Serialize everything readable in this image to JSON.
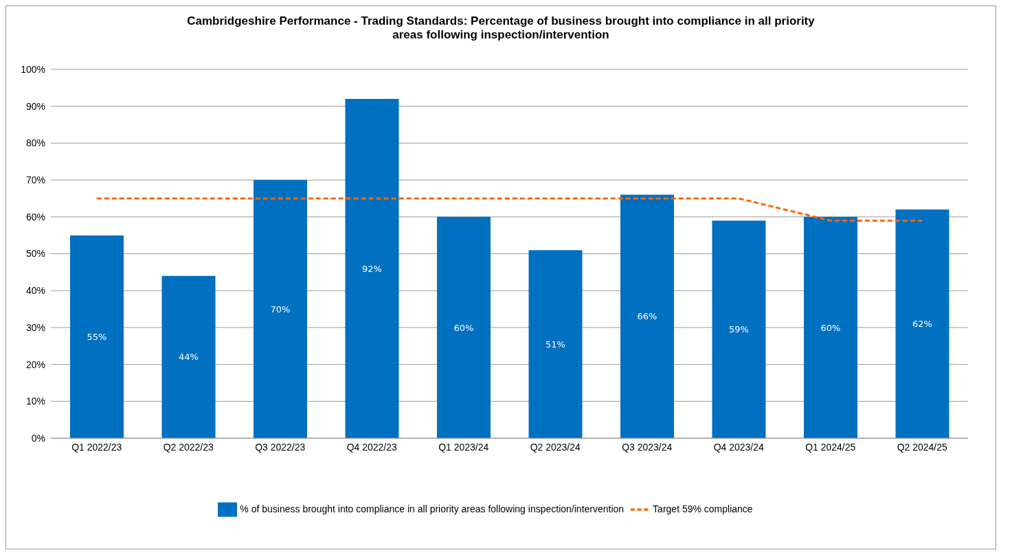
{
  "chart_data": {
    "type": "bar",
    "title": "Cambridgeshire Performance - Trading Standards: Percentage of business brought into compliance in all priority areas following inspection/intervention",
    "categories": [
      "Q1 2022/23",
      "Q2 2022/23",
      "Q3 2022/23",
      "Q4 2022/23",
      "Q1 2023/24",
      "Q2 2023/24",
      "Q3 2023/24",
      "Q4 2023/24",
      "Q1 2024/25",
      "Q2 2024/25"
    ],
    "series": [
      {
        "name": "% of business brought into compliance in all priority areas following inspection/intervention",
        "color": "#0070c0",
        "values": [
          55,
          44,
          70,
          92,
          60,
          51,
          66,
          59,
          60,
          62
        ],
        "value_labels": [
          "55%",
          "44%",
          "70%",
          "92%",
          "60%",
          "51%",
          "66%",
          "59%",
          "60%",
          "62%"
        ]
      },
      {
        "name": "Target 59% compliance",
        "type": "line",
        "color": "#ff6600",
        "line_style": "dashed",
        "marker": "none",
        "values": [
          65,
          65,
          65,
          65,
          65,
          65,
          65,
          65,
          59,
          59
        ]
      }
    ],
    "ylim": [
      0,
      100
    ],
    "yticks": [
      {
        "value": 0,
        "label": "0%"
      },
      {
        "value": 10,
        "label": "10%"
      },
      {
        "value": 20,
        "label": "20%"
      },
      {
        "value": 30,
        "label": "30%"
      },
      {
        "value": 40,
        "label": "40%"
      },
      {
        "value": 50,
        "label": "50%"
      },
      {
        "value": 60,
        "label": "60%"
      },
      {
        "value": 70,
        "label": "70%"
      },
      {
        "value": 80,
        "label": "80%"
      },
      {
        "value": 90,
        "label": "90%"
      },
      {
        "value": 100,
        "label": "100%"
      }
    ],
    "grid": "y",
    "legend": "bottom"
  }
}
